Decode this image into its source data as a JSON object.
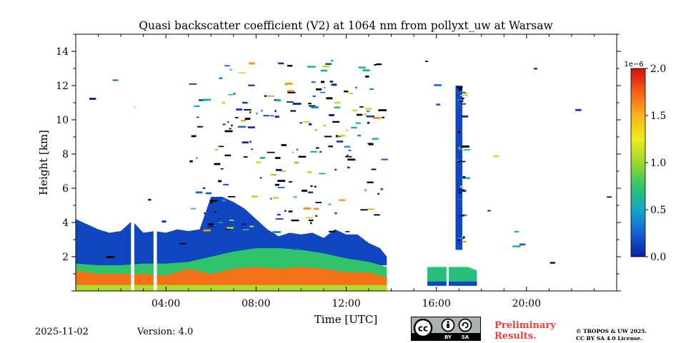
{
  "chart_data": {
    "type": "heatmap",
    "title": "Quasi backscatter coefficient (V2) at 1064 nm from pollyxt_uw at Warsaw",
    "xlabel": "Time [UTC]",
    "ylabel": "Height [km]",
    "xlim": [
      0,
      24
    ],
    "ylim": [
      0,
      15
    ],
    "x_ticks": [
      {
        "value": 4,
        "label": "04:00"
      },
      {
        "value": 8,
        "label": "08:00"
      },
      {
        "value": 12,
        "label": "12:00"
      },
      {
        "value": 16,
        "label": "16:00"
      },
      {
        "value": 20,
        "label": "20:00"
      }
    ],
    "y_ticks": [
      {
        "value": 2,
        "label": "2"
      },
      {
        "value": 4,
        "label": "4"
      },
      {
        "value": 6,
        "label": "6"
      },
      {
        "value": 8,
        "label": "8"
      },
      {
        "value": 10,
        "label": "10"
      },
      {
        "value": 12,
        "label": "12"
      },
      {
        "value": 14,
        "label": "14"
      }
    ],
    "colorbar": {
      "min": 0.0,
      "max": 2.0,
      "scale_label": "1e−6",
      "ticks": [
        {
          "value": 0.0,
          "label": "0.0"
        },
        {
          "value": 0.5,
          "label": "0.5"
        },
        {
          "value": 1.0,
          "label": "1.0"
        },
        {
          "value": 1.5,
          "label": "1.5"
        },
        {
          "value": 2.0,
          "label": "2.0"
        }
      ],
      "colormap": [
        "#0a1f9e",
        "#1560d8",
        "#14a7c4",
        "#30c46a",
        "#9ad82c",
        "#f0ec1c",
        "#f8b41a",
        "#f46018",
        "#d21010"
      ]
    },
    "regions": [
      {
        "name": "boundary-layer-high",
        "x": [
          0,
          0.5,
          1,
          1.5,
          2,
          2.5,
          3,
          3.5,
          4,
          4.5,
          5,
          5.5,
          6,
          6.5,
          7,
          7.5,
          8,
          8.5,
          9,
          9.5,
          10,
          10.5,
          11,
          11.5,
          12,
          12.5,
          13,
          13.5,
          13.8
        ],
        "top": [
          4.2,
          3.9,
          3.6,
          3.4,
          3.5,
          4.1,
          3.4,
          3.5,
          3.4,
          3.6,
          3.5,
          3.6,
          5.5,
          5.5,
          5.2,
          4.8,
          4.2,
          3.6,
          3.2,
          3.4,
          3.3,
          3.4,
          3.1,
          3.6,
          3.3,
          3.3,
          2.8,
          2.5,
          2.0
        ],
        "bottom": 1.5,
        "value": 0.15
      },
      {
        "name": "lower-layer",
        "x": [
          0,
          1,
          2,
          3,
          4,
          5,
          6,
          7,
          8,
          9,
          10,
          11,
          12,
          13,
          13.8
        ],
        "top": [
          1.6,
          1.5,
          1.5,
          1.6,
          1.6,
          1.7,
          2.0,
          2.3,
          2.5,
          2.5,
          2.4,
          2.2,
          1.9,
          1.7,
          1.4
        ],
        "bottom": 0.0,
        "value": 0.75
      },
      {
        "name": "near-surface",
        "x": [
          0,
          1,
          2,
          3,
          4,
          5,
          6,
          7,
          8,
          9,
          10,
          11,
          12,
          13,
          13.8
        ],
        "top": [
          1.2,
          1.0,
          1.0,
          1.0,
          0.9,
          1.3,
          1.0,
          1.3,
          1.4,
          1.3,
          1.4,
          1.3,
          1.1,
          1.1,
          0.8
        ],
        "bottom": 0.0,
        "value": 1.7
      },
      {
        "name": "surface",
        "x": [
          0,
          13.8
        ],
        "top": [
          0.35,
          0.35
        ],
        "bottom": 0.0,
        "value": 1.05
      },
      {
        "name": "evening-layer",
        "x": [
          15.6,
          16.4,
          16.6,
          17.4,
          17.8
        ],
        "top": [
          1.4,
          1.4,
          1.4,
          1.4,
          1.2
        ],
        "bottom": 0.3,
        "value": 0.7
      },
      {
        "name": "evening-surface",
        "x": [
          15.6,
          17.8
        ],
        "top": [
          0.55,
          0.55
        ],
        "bottom": 0.3,
        "value": 0.15
      },
      {
        "name": "virga-column",
        "x": [
          16.85,
          17.15
        ],
        "top": [
          12.0,
          12.0
        ],
        "bottom": 2.4,
        "value": 0.15
      }
    ],
    "data_gaps": [
      {
        "start": 2.45,
        "end": 2.6
      },
      {
        "start": 3.45,
        "end": 3.6
      },
      {
        "start": 13.85,
        "end": 15.5
      },
      {
        "start": 16.45,
        "end": 16.55
      }
    ]
  },
  "footer": {
    "date": "2025-11-02",
    "version": "Version: 4.0",
    "license_badge": "cc-by-sa-icon",
    "preliminary_line1": "Preliminary",
    "preliminary_line2": "Results.",
    "copyright_line1": "© TROPOS & UW 2025.",
    "copyright_line2": "CC BY SA 4.0 License."
  }
}
